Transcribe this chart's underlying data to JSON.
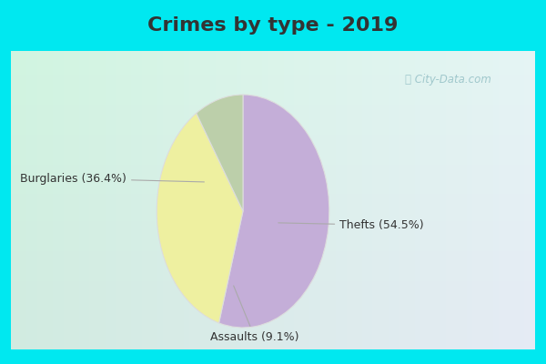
{
  "title": "Crimes by type - 2019",
  "slices": [
    {
      "label": "Thefts (54.5%)",
      "value": 54.5,
      "color": "#c4aed8"
    },
    {
      "label": "Burglaries (36.4%)",
      "value": 36.4,
      "color": "#eef0a0"
    },
    {
      "label": "Assaults (9.1%)",
      "value": 9.1,
      "color": "#bccfaa"
    }
  ],
  "background_border": "#00e8f0",
  "background_inner": "#d0eae0",
  "title_fontsize": 16,
  "title_color": "#333333",
  "label_fontsize": 9,
  "label_color": "#333333",
  "watermark": "ⓘ City-Data.com",
  "watermark_color": "#a0c8cc",
  "border_width": 12
}
